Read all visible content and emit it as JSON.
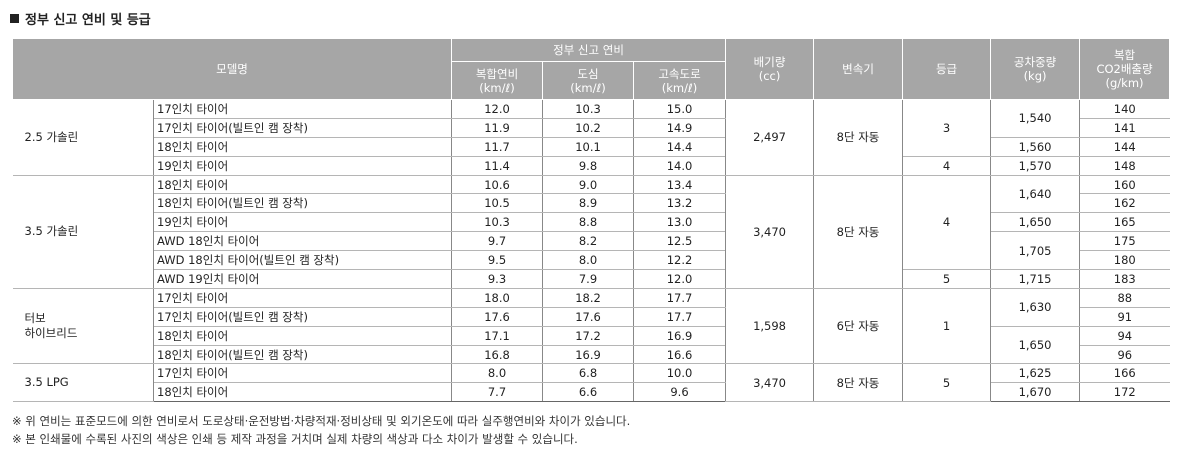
{
  "title": "정부 신고 연비 및 등급",
  "headers": {
    "model": "모델명",
    "fuel_group": "정부 신고 연비",
    "combined": "복합연비\n(km/ℓ)",
    "city": "도심\n(km/ℓ)",
    "highway": "고속도로\n(km/ℓ)",
    "displacement": "배기량\n(cc)",
    "transmission": "변속기",
    "grade": "등급",
    "weight": "공차중량\n(kg)",
    "co2": "복합\nCO2배출량\n(g/km)"
  },
  "groups": [
    {
      "model": "2.5 가솔린",
      "displacement": "2,497",
      "transmission": "8단 자동",
      "rows": [
        {
          "tire": "17인치 타이어",
          "combined": "12.0",
          "city": "10.3",
          "highway": "15.0",
          "co2": "140"
        },
        {
          "tire": "17인치 타이어(빌트인 캠 장착)",
          "combined": "11.9",
          "city": "10.2",
          "highway": "14.9",
          "co2": "141"
        },
        {
          "tire": "18인치 타이어",
          "combined": "11.7",
          "city": "10.1",
          "highway": "14.4",
          "co2": "144"
        },
        {
          "tire": "19인치 타이어",
          "combined": "11.4",
          "city": "9.8",
          "highway": "14.0",
          "co2": "148"
        }
      ],
      "grades": [
        "3",
        "4"
      ],
      "weights": [
        "1,540",
        "1,560",
        "1,570"
      ]
    },
    {
      "model": "3.5 가솔린",
      "displacement": "3,470",
      "transmission": "8단 자동",
      "rows": [
        {
          "tire": "18인치 타이어",
          "combined": "10.6",
          "city": "9.0",
          "highway": "13.4",
          "co2": "160"
        },
        {
          "tire": "18인치 타이어(빌트인 캠 장착)",
          "combined": "10.5",
          "city": "8.9",
          "highway": "13.2",
          "co2": "162"
        },
        {
          "tire": "19인치 타이어",
          "combined": "10.3",
          "city": "8.8",
          "highway": "13.0",
          "co2": "165"
        },
        {
          "tire": "AWD 18인치 타이어",
          "combined": "9.7",
          "city": "8.2",
          "highway": "12.5",
          "co2": "175"
        },
        {
          "tire": "AWD 18인치 타이어(빌트인 캠 장착)",
          "combined": "9.5",
          "city": "8.0",
          "highway": "12.2",
          "co2": "180"
        },
        {
          "tire": "AWD 19인치 타이어",
          "combined": "9.3",
          "city": "7.9",
          "highway": "12.0",
          "co2": "183"
        }
      ],
      "grades": [
        "4",
        "5"
      ],
      "weights": [
        "1,640",
        "1,650",
        "1,705",
        "1,715"
      ]
    },
    {
      "model": "터보\n하이브리드",
      "displacement": "1,598",
      "transmission": "6단 자동",
      "rows": [
        {
          "tire": "17인치 타이어",
          "combined": "18.0",
          "city": "18.2",
          "highway": "17.7",
          "co2": "88"
        },
        {
          "tire": "17인치 타이어(빌트인 캠 장착)",
          "combined": "17.6",
          "city": "17.6",
          "highway": "17.7",
          "co2": "91"
        },
        {
          "tire": "18인치 타이어",
          "combined": "17.1",
          "city": "17.2",
          "highway": "16.9",
          "co2": "94"
        },
        {
          "tire": "18인치 타이어(빌트인 캠 장착)",
          "combined": "16.8",
          "city": "16.9",
          "highway": "16.6",
          "co2": "96"
        }
      ],
      "grades": [
        "1"
      ],
      "weights": [
        "1,630",
        "1,650"
      ]
    },
    {
      "model": "3.5 LPG",
      "displacement": "3,470",
      "transmission": "8단 자동",
      "rows": [
        {
          "tire": "17인치 타이어",
          "combined": "8.0",
          "city": "6.8",
          "highway": "10.0",
          "co2": "166"
        },
        {
          "tire": "18인치 타이어",
          "combined": "7.7",
          "city": "6.6",
          "highway": "9.6",
          "co2": "172"
        }
      ],
      "grades": [
        "5"
      ],
      "weights": [
        "1,625",
        "1,670"
      ]
    }
  ],
  "notes": [
    "※ 위 연비는 표준모드에 의한 연비로서 도로상태·운전방법·차량적재·정비상태 및 외기온도에 따라 실주행연비와 차이가 있습니다.",
    "※ 본 인쇄물에 수록된 사진의 색상은 인쇄 등 제작 과정을 거치며 실제 차량의 색상과 다소 차이가 발생할 수 있습니다."
  ]
}
